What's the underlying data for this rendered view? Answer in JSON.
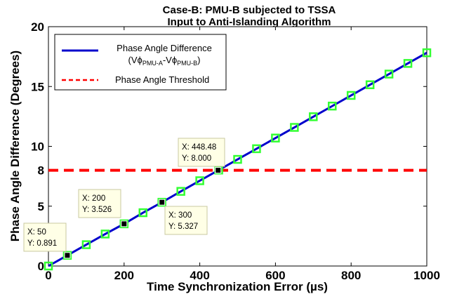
{
  "chart_data": {
    "type": "line",
    "title": "Case-B: PMU-B subjected to TSSA",
    "subtitle": "Input to Anti-Islanding Algorithm",
    "xlabel": "Time Synchronization Error (µs)",
    "ylabel": "Phase Angle Difference (Degrees)",
    "xlim": [
      0,
      1000
    ],
    "ylim": [
      0,
      20
    ],
    "xticks": [
      "0",
      "200",
      "400",
      "600",
      "800",
      "1000"
    ],
    "yticks": [
      "0",
      "5",
      "8",
      "10",
      "15",
      "20"
    ],
    "ytick_values": [
      0,
      5,
      8,
      10,
      15,
      20
    ],
    "grid": false,
    "legend_position": "top-left",
    "series": [
      {
        "name": "Phase Angle Difference",
        "color": "#0000cc",
        "marker": "square-green",
        "x": [
          0,
          50,
          100,
          150,
          200,
          250,
          300,
          350,
          400,
          450,
          500,
          550,
          600,
          650,
          700,
          750,
          800,
          850,
          900,
          950,
          1000
        ],
        "values": [
          0,
          0.891,
          1.782,
          2.673,
          3.526,
          4.455,
          5.327,
          6.237,
          7.128,
          8.019,
          8.91,
          9.801,
          10.692,
          11.583,
          12.474,
          13.365,
          14.256,
          15.147,
          16.038,
          16.929,
          17.82
        ]
      },
      {
        "name": "Phase Angle Threshold",
        "color": "#ff0000",
        "style": "dashed",
        "x": [
          0,
          1000
        ],
        "values": [
          8,
          8
        ]
      }
    ],
    "legend": {
      "line1": "Phase Angle Difference",
      "line2_prefix": "(Vϕ",
      "sub_a": "PMU-A",
      "line2_mid": "-Vϕ",
      "sub_b": "PMU-B",
      "line2_suffix": ")",
      "threshold": "Phase Angle Threshold"
    },
    "datatips": [
      {
        "x": 50,
        "y": 0.891,
        "xtext": "X: 50",
        "ytext": "Y: 0.891"
      },
      {
        "x": 200,
        "y": 3.526,
        "xtext": "X: 200",
        "ytext": "Y: 3.526"
      },
      {
        "x": 300,
        "y": 5.327,
        "xtext": "X: 300",
        "ytext": "Y: 5.327"
      },
      {
        "x": 448.48,
        "y": 8.0,
        "xtext": "X: 448.48",
        "ytext": "Y: 8.000"
      }
    ]
  }
}
